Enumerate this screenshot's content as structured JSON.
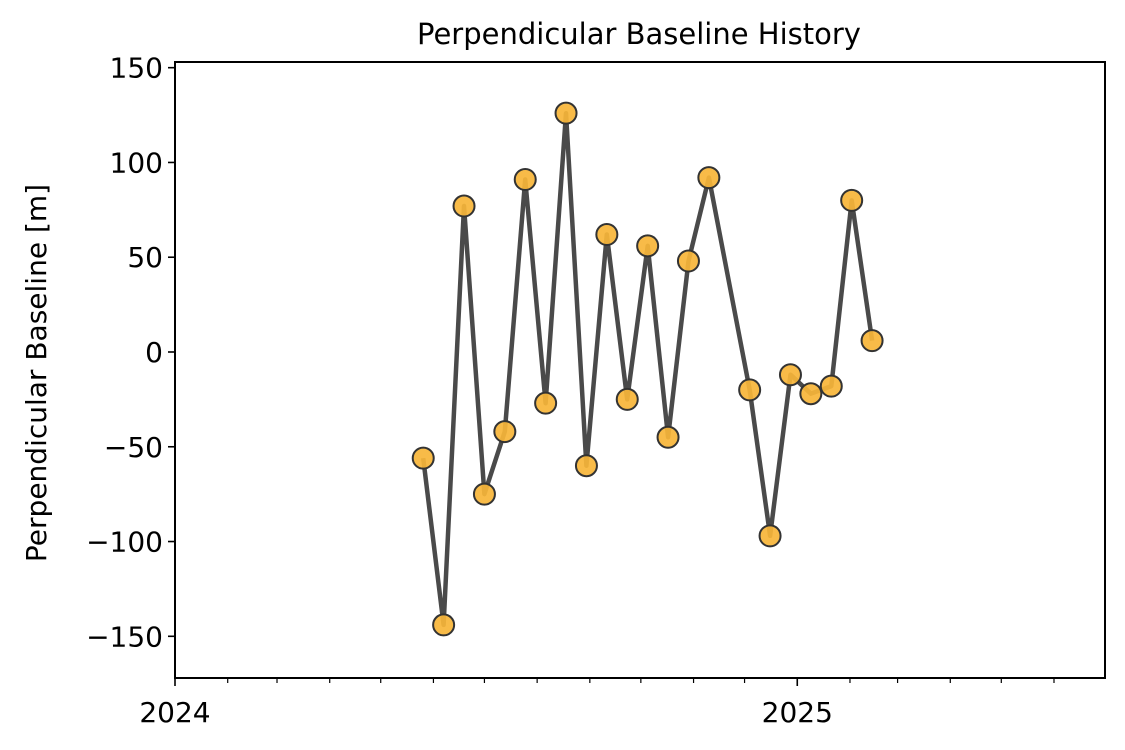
{
  "chart_data": {
    "type": "line",
    "title": "Perpendicular Baseline History",
    "xlabel": "",
    "ylabel": "Perpendicular Baseline [m]",
    "xlim": [
      "2024-01-01",
      "2025-07-01"
    ],
    "ylim": [
      -172,
      153
    ],
    "y_ticks": [
      150,
      100,
      50,
      0,
      -50,
      -100,
      -150
    ],
    "y_tick_labels": [
      "150",
      "100",
      "50",
      "0",
      "−50",
      "−100",
      "−150"
    ],
    "x_major_ticks": [
      {
        "date": "2024-01-01",
        "label": "2024"
      },
      {
        "date": "2025-01-01",
        "label": "2025"
      }
    ],
    "x_minor_ticks": [
      "2024-02-01",
      "2024-03-01",
      "2024-04-01",
      "2024-05-01",
      "2024-06-01",
      "2024-07-01",
      "2024-08-01",
      "2024-09-01",
      "2024-10-01",
      "2024-11-01",
      "2024-12-01",
      "2025-02-01",
      "2025-03-01",
      "2025-04-01",
      "2025-05-01",
      "2025-06-01"
    ],
    "grid": false,
    "line_color": "#4a4a4a",
    "marker_fill": "#f7b538",
    "marker_edge": "#333333",
    "series": [
      {
        "x": [
          "2024-05-26",
          "2024-06-07",
          "2024-06-19",
          "2024-07-01",
          "2024-07-13",
          "2024-07-25",
          "2024-08-06",
          "2024-08-18",
          "2024-08-30",
          "2024-09-11",
          "2024-09-23",
          "2024-10-05",
          "2024-10-17",
          "2024-10-29",
          "2024-11-10",
          "2024-12-04",
          "2024-12-16",
          "2024-12-28",
          "2025-01-09",
          "2025-01-21",
          "2025-02-02",
          "2025-02-14"
        ],
        "y": [
          -56,
          -144,
          77,
          -75,
          -42,
          91,
          -27,
          126,
          -60,
          62,
          -25,
          56,
          -45,
          48,
          92,
          -20,
          -97,
          -12,
          -22,
          -18,
          80,
          6
        ]
      }
    ]
  }
}
